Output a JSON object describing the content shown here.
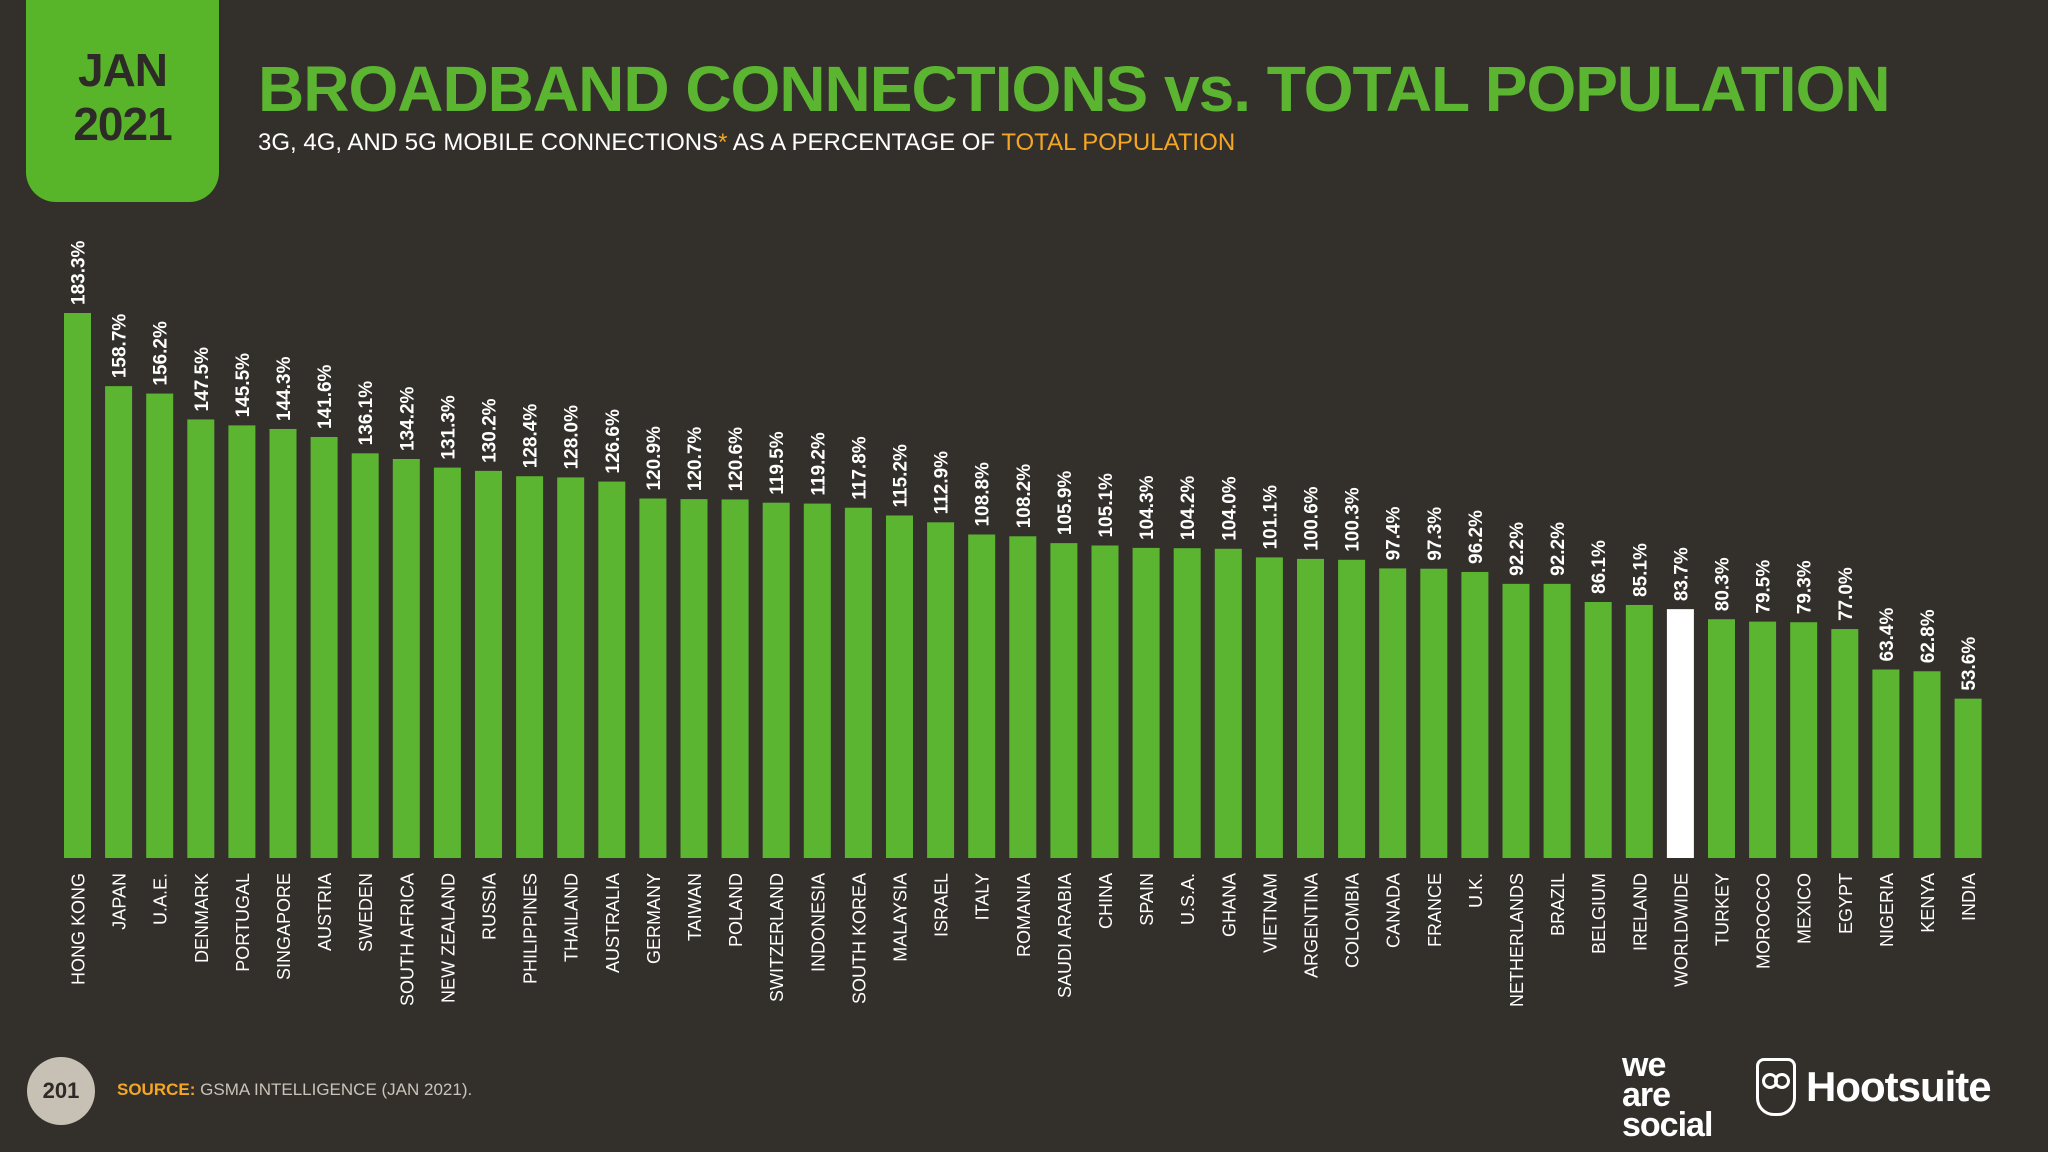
{
  "badge": {
    "month": "JAN",
    "year": "2021"
  },
  "header": {
    "title": "BROADBAND CONNECTIONS vs. TOTAL POPULATION",
    "subtitle_pre": "3G, 4G, AND 5G MOBILE CONNECTIONS",
    "subtitle_asterisk": "*",
    "subtitle_mid": " AS A PERCENTAGE OF ",
    "subtitle_highlight": "TOTAL POPULATION"
  },
  "footer": {
    "page_number": "201",
    "source_label": "SOURCE:",
    "source_text": " GSMA INTELLIGENCE (JAN 2021)."
  },
  "logos": {
    "wearesocial": [
      "we",
      "are",
      "social"
    ],
    "hootsuite": "Hootsuite"
  },
  "colors": {
    "background": "#33302c",
    "bar": "#5cb531",
    "highlight_bar": "#ffffff",
    "accent": "#f5a623"
  },
  "chart_data": {
    "type": "bar",
    "title": "BROADBAND CONNECTIONS vs. TOTAL POPULATION",
    "ylabel": "",
    "xlabel": "",
    "ylim": [
      0,
      183.3
    ],
    "grid": false,
    "highlight": "WORLDWIDE",
    "categories": [
      "HONG KONG",
      "JAPAN",
      "U.A.E.",
      "DENMARK",
      "PORTUGAL",
      "SINGAPORE",
      "AUSTRIA",
      "SWEDEN",
      "SOUTH AFRICA",
      "NEW ZEALAND",
      "RUSSIA",
      "PHILIPPINES",
      "THAILAND",
      "AUSTRALIA",
      "GERMANY",
      "TAIWAN",
      "POLAND",
      "SWITZERLAND",
      "INDONESIA",
      "SOUTH KOREA",
      "MALAYSIA",
      "ISRAEL",
      "ITALY",
      "ROMANIA",
      "SAUDI ARABIA",
      "CHINA",
      "SPAIN",
      "U.S.A.",
      "GHANA",
      "VIETNAM",
      "ARGENTINA",
      "COLOMBIA",
      "CANADA",
      "FRANCE",
      "U.K.",
      "NETHERLANDS",
      "BRAZIL",
      "BELGIUM",
      "IRELAND",
      "WORLDWIDE",
      "TURKEY",
      "MOROCCO",
      "MEXICO",
      "EGYPT",
      "NIGERIA",
      "KENYA",
      "INDIA"
    ],
    "values": [
      183.3,
      158.7,
      156.2,
      147.5,
      145.5,
      144.3,
      141.6,
      136.1,
      134.2,
      131.3,
      130.2,
      128.4,
      128.0,
      126.6,
      120.9,
      120.7,
      120.6,
      119.5,
      119.2,
      117.8,
      115.2,
      112.9,
      108.8,
      108.2,
      105.9,
      105.1,
      104.3,
      104.2,
      104.0,
      101.1,
      100.6,
      100.3,
      97.4,
      97.3,
      96.2,
      92.2,
      92.2,
      86.1,
      85.1,
      83.7,
      80.3,
      79.5,
      79.3,
      77.0,
      63.4,
      62.8,
      53.6
    ],
    "labels": [
      "183.3%",
      "158.7%",
      "156.2%",
      "147.5%",
      "145.5%",
      "144.3%",
      "141.6%",
      "136.1%",
      "134.2%",
      "131.3%",
      "130.2%",
      "128.4%",
      "128.0%",
      "126.6%",
      "120.9%",
      "120.7%",
      "120.6%",
      "119.5%",
      "119.2%",
      "117.8%",
      "115.2%",
      "112.9%",
      "108.8%",
      "108.2%",
      "105.9%",
      "105.1%",
      "104.3%",
      "104.2%",
      "104.0%",
      "101.1%",
      "100.6%",
      "100.3%",
      "97.4%",
      "97.3%",
      "96.2%",
      "92.2%",
      "92.2%",
      "86.1%",
      "85.1%",
      "83.7%",
      "80.3%",
      "79.5%",
      "79.3%",
      "77.0%",
      "63.4%",
      "62.8%",
      "53.6%"
    ]
  }
}
